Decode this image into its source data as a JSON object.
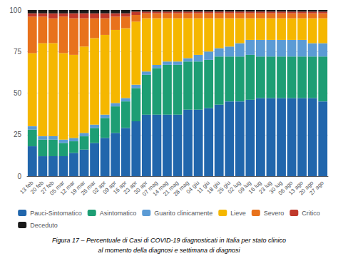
{
  "chart_data": {
    "type": "bar",
    "stacked": true,
    "grid": true,
    "categories": [
      "13 feb",
      "20 feb",
      "27 feb",
      "05 mar",
      "12 mar",
      "19 mar",
      "26 mar",
      "02 apr",
      "09 apr",
      "16 apr",
      "23 apr",
      "30 apr",
      "07 mag",
      "14 mag",
      "21 mag",
      "28 mag",
      "04 giu",
      "11 giu",
      "18 giu",
      "25 giu",
      "02 lug",
      "09 lug",
      "16 lug",
      "23 lug",
      "30 lug",
      "06 ago",
      "13 ago",
      "20 ago",
      "27 ago"
    ],
    "series": [
      {
        "name": "Pauci-Sintomatico",
        "color": "#2166ac",
        "values": [
          18,
          12,
          12,
          12,
          14,
          16,
          20,
          23,
          26,
          29,
          33,
          37,
          37,
          37,
          37,
          40,
          40,
          41,
          43,
          45,
          45,
          46,
          47,
          47,
          47,
          47,
          47,
          47,
          45
        ]
      },
      {
        "name": "Asintomatico",
        "color": "#1d9e74",
        "values": [
          10,
          10,
          10,
          8,
          7,
          8,
          9,
          12,
          16,
          16,
          20,
          24,
          28,
          30,
          30,
          29,
          29,
          29,
          29,
          27,
          27,
          27,
          25,
          25,
          25,
          25,
          25,
          25,
          27
        ]
      },
      {
        "name": "Guarito clinicamente",
        "color": "#5b9bd5",
        "values": [
          2,
          2,
          2,
          2,
          2,
          2,
          2,
          2,
          2,
          2,
          2,
          2,
          2,
          2,
          2,
          2,
          4,
          5,
          5,
          6,
          8,
          9,
          10,
          10,
          10,
          10,
          10,
          8,
          8
        ]
      },
      {
        "name": "Lieve",
        "color": "#f5b700",
        "values": [
          44,
          56,
          56,
          52,
          50,
          52,
          52,
          48,
          44,
          42,
          38,
          32,
          28,
          26,
          26,
          24,
          22,
          20,
          18,
          17,
          15,
          13,
          13,
          13,
          13,
          13,
          13,
          15,
          15
        ]
      },
      {
        "name": "Severo",
        "color": "#e8721c",
        "values": [
          22,
          16,
          15,
          22,
          22,
          17,
          12,
          10,
          8,
          7,
          4,
          3,
          3,
          3,
          3,
          3,
          3,
          3,
          3,
          3,
          3,
          3,
          3,
          3,
          3,
          3,
          3,
          3,
          3
        ]
      },
      {
        "name": "Critico",
        "color": "#c0392b",
        "values": [
          2,
          2,
          3,
          2,
          3,
          3,
          3,
          3,
          2,
          2,
          2,
          1,
          1,
          1,
          1,
          1,
          1,
          1,
          1,
          1,
          1,
          1,
          1,
          1,
          1,
          1,
          1,
          1,
          1
        ]
      },
      {
        "name": "Deceduto",
        "color": "#1a1a1a",
        "values": [
          2,
          2,
          2,
          2,
          2,
          2,
          2,
          2,
          2,
          2,
          1,
          1,
          1,
          1,
          1,
          1,
          1,
          1,
          1,
          1,
          1,
          1,
          1,
          1,
          1,
          1,
          1,
          1,
          1
        ]
      }
    ],
    "ylim": [
      0,
      100
    ],
    "yticks": [
      0,
      25,
      50,
      75,
      100
    ],
    "annotations": [
      "Figura 17 – Percentuale di Casi di COVID-19 diagnosticati in Italia per stato clinico",
      "al momento della diagnosi e settimana di diagnosi"
    ]
  }
}
